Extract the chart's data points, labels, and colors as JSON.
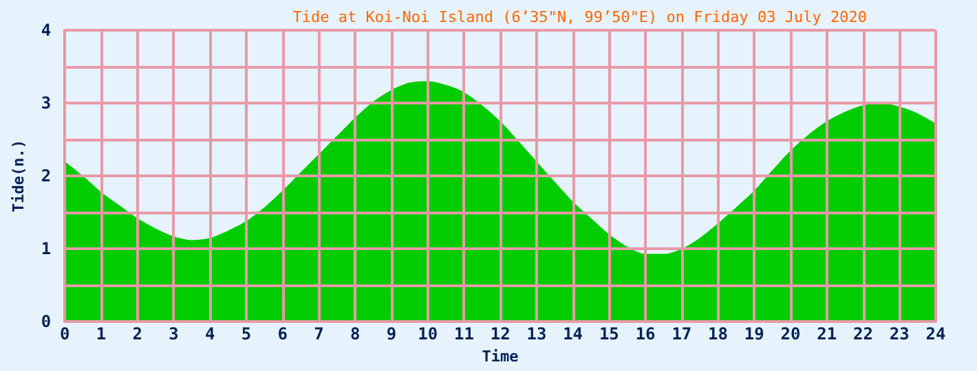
{
  "chart_data": {
    "type": "area",
    "title": "Tide at Koi-Noi Island (6’35\"N, 99’50\"E) on Friday 03 July 2020",
    "xlabel": "Time",
    "ylabel": "Tide(n.)",
    "x": [
      0,
      0.5,
      1,
      1.5,
      2,
      2.5,
      3,
      3.5,
      4,
      4.5,
      5,
      5.5,
      6,
      6.5,
      7,
      7.5,
      8,
      8.5,
      9,
      9.5,
      10,
      10.5,
      11,
      11.5,
      12,
      12.5,
      13,
      13.5,
      14,
      14.5,
      15,
      15.5,
      16,
      16.5,
      17,
      17.5,
      18,
      18.5,
      19,
      19.5,
      20,
      20.5,
      21,
      21.5,
      22,
      22.5,
      23,
      23.5,
      24
    ],
    "series": [
      {
        "color": "#00cc00",
        "values": [
          2.2,
          2.0,
          1.78,
          1.6,
          1.42,
          1.28,
          1.17,
          1.12,
          1.15,
          1.25,
          1.38,
          1.57,
          1.8,
          2.05,
          2.3,
          2.55,
          2.8,
          3.02,
          3.18,
          3.28,
          3.3,
          3.25,
          3.15,
          2.97,
          2.75,
          2.48,
          2.2,
          1.92,
          1.65,
          1.42,
          1.2,
          1.03,
          0.93,
          0.93,
          1.0,
          1.15,
          1.35,
          1.57,
          1.8,
          2.08,
          2.35,
          2.57,
          2.75,
          2.88,
          2.97,
          3.0,
          2.95,
          2.86,
          2.72
        ]
      }
    ],
    "xlim": [
      0,
      24
    ],
    "xticks": [
      0,
      1,
      2,
      3,
      4,
      5,
      6,
      7,
      8,
      9,
      10,
      11,
      12,
      13,
      14,
      15,
      16,
      17,
      18,
      19,
      20,
      21,
      22,
      23,
      24
    ],
    "ylim": [
      0,
      4
    ],
    "yticks": [
      0,
      {
        "value": 0.5,
        "label": null
      },
      1,
      {
        "value": 1.5,
        "label": null
      },
      2,
      {
        "value": 2.5,
        "label": null
      },
      3,
      {
        "value": 3.5,
        "label": null
      },
      4
    ],
    "grid": true,
    "marker": "none"
  }
}
